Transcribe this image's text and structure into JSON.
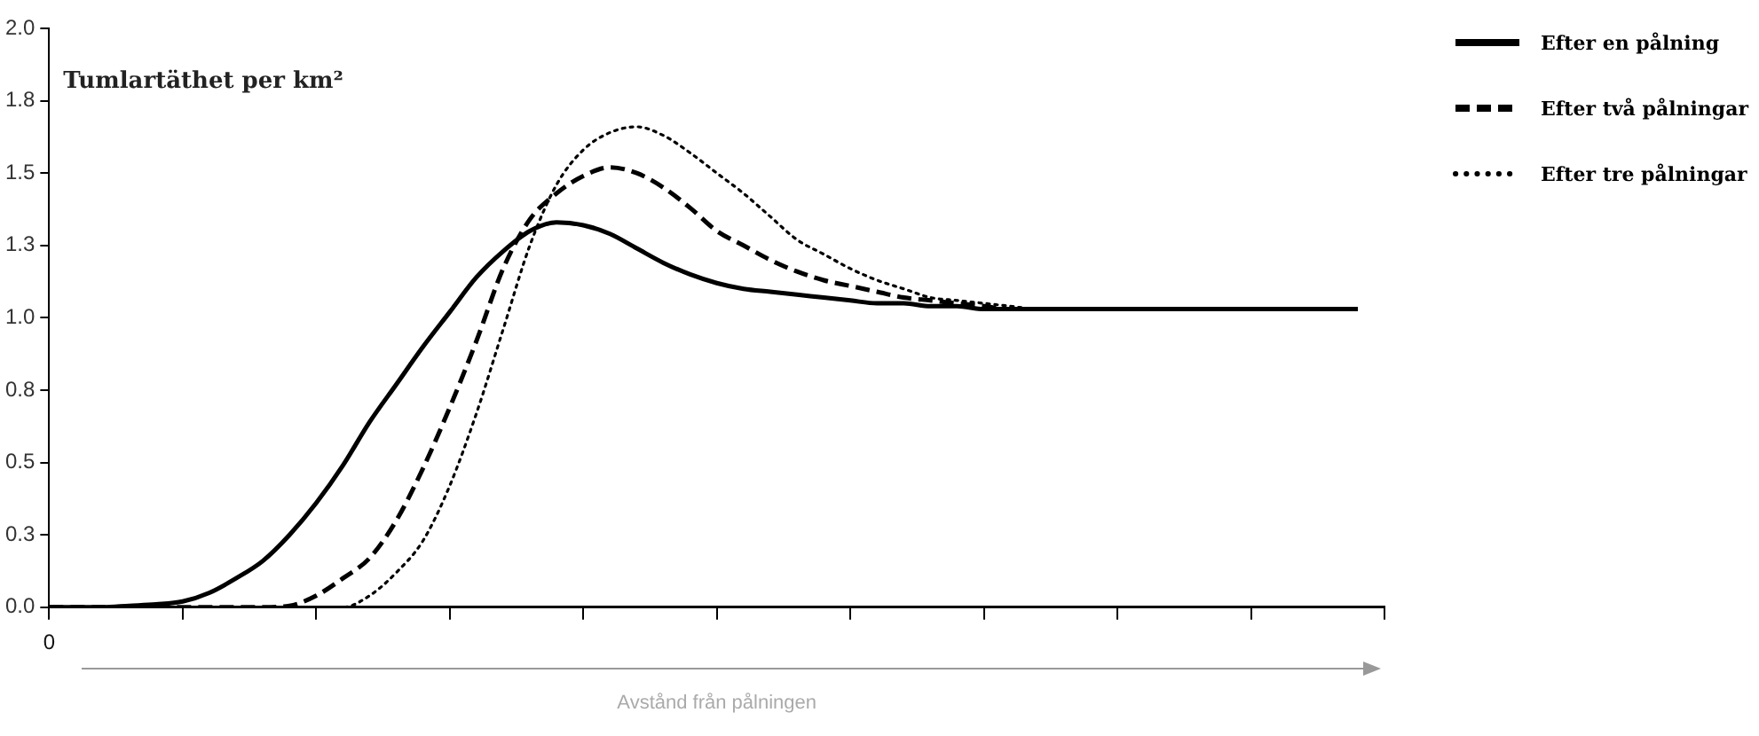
{
  "chart_data": {
    "type": "line",
    "ylabel": "Tumlartäthet per km²",
    "xlabel": "Avstånd från pålningen",
    "categories": [
      "0",
      null,
      null,
      null,
      null,
      null,
      null,
      null,
      null,
      null,
      null,
      null,
      null,
      null,
      null,
      null,
      null,
      null,
      null,
      null,
      null,
      null,
      null,
      null,
      null,
      null,
      null,
      null,
      null,
      null,
      null,
      null,
      null,
      null,
      null,
      null,
      null,
      null,
      null,
      null,
      null,
      null,
      null,
      null,
      null,
      null,
      null,
      null,
      null,
      null,
      null
    ],
    "series": [
      {
        "name": "Efter en pålning",
        "color": "#000000",
        "line_style": "solid",
        "values": [
          0,
          0,
          0,
          0.005,
          0.01,
          0.02,
          0.05,
          0.1,
          0.16,
          0.25,
          0.36,
          0.49,
          0.64,
          0.77,
          0.9,
          1.02,
          1.14,
          1.23,
          1.3,
          1.33,
          1.32,
          1.29,
          1.24,
          1.19,
          1.15,
          1.12,
          1.1,
          1.09,
          1.08,
          1.07,
          1.06,
          1.05,
          1.05,
          1.04,
          1.04,
          1.03,
          1.03,
          1.03,
          1.03,
          1.03,
          1.03,
          1.03,
          1.03,
          1.03,
          1.03,
          1.03,
          1.03,
          1.03,
          1.03,
          1.03,
          null
        ]
      },
      {
        "name": "Efter två pålningar",
        "color": "#000000",
        "line_style": "dashed",
        "values": [
          0,
          0,
          0,
          0,
          0,
          0,
          0,
          0,
          0,
          0.005,
          0.04,
          0.1,
          0.17,
          0.3,
          0.48,
          0.69,
          0.92,
          1.17,
          1.34,
          1.43,
          1.49,
          1.52,
          1.5,
          1.45,
          1.38,
          1.3,
          1.25,
          1.2,
          1.16,
          1.13,
          1.11,
          1.09,
          1.07,
          1.06,
          1.05,
          1.04,
          1.03,
          1.03,
          1.03,
          1.03,
          1.03,
          1.03,
          1.03,
          1.03,
          1.03,
          1.03,
          1.03,
          1.03,
          1.03,
          1.03,
          null
        ]
      },
      {
        "name": "Efter tre pålningar",
        "color": "#000000",
        "line_style": "dotted",
        "values": [
          0,
          0,
          0,
          0,
          0,
          0,
          0,
          0,
          0,
          0,
          0,
          0,
          0.04,
          0.12,
          0.23,
          0.42,
          0.67,
          0.96,
          1.25,
          1.46,
          1.58,
          1.64,
          1.66,
          1.63,
          1.57,
          1.5,
          1.43,
          1.35,
          1.27,
          1.22,
          1.17,
          1.13,
          1.1,
          1.07,
          1.06,
          1.05,
          1.04,
          1.03,
          1.03,
          1.03,
          1.03,
          1.03,
          1.03,
          1.03,
          1.03,
          1.03,
          1.03,
          1.03,
          1.03,
          1.03,
          null
        ]
      }
    ],
    "ylim": [
      0,
      2
    ],
    "yticks": [
      {
        "value": 0,
        "label": "0.0"
      },
      {
        "value": 0.25,
        "label": "0.3"
      },
      {
        "value": 0.5,
        "label": "0.5"
      },
      {
        "value": 0.75,
        "label": "0.8"
      },
      {
        "value": 1,
        "label": "1.0"
      },
      {
        "value": 1.25,
        "label": "1.3"
      },
      {
        "value": 1.5,
        "label": "1.5"
      },
      {
        "value": 1.75,
        "label": "1.8"
      },
      {
        "value": 2,
        "label": "2.0"
      }
    ],
    "grid": false,
    "legend": "top right",
    "marker": "none"
  }
}
